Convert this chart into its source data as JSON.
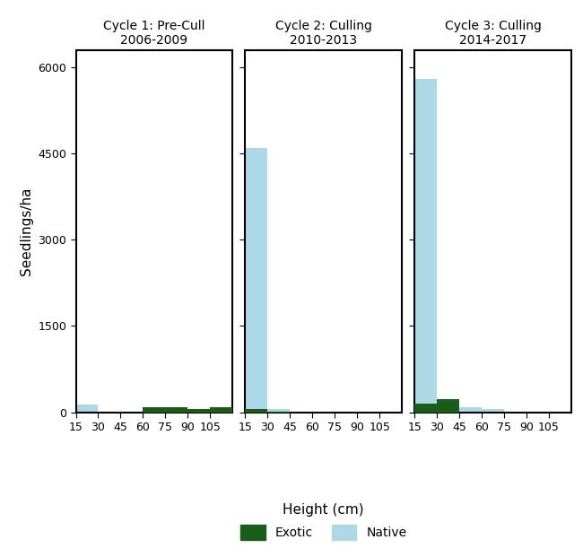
{
  "panels": [
    {
      "title": "Cycle 1: Pre-Cull\n2006-2009",
      "bins": [
        15,
        30,
        45,
        60,
        75,
        90,
        105
      ],
      "exotic": [
        0,
        0,
        0,
        90,
        90,
        55,
        85
      ],
      "native": [
        130,
        8,
        0,
        0,
        0,
        0,
        0
      ]
    },
    {
      "title": "Cycle 2: Culling\n2010-2013",
      "bins": [
        15,
        30,
        45,
        60,
        75,
        90,
        105
      ],
      "exotic": [
        55,
        5,
        0,
        0,
        0,
        0,
        0
      ],
      "native": [
        4600,
        50,
        0,
        0,
        0,
        0,
        0
      ]
    },
    {
      "title": "Cycle 3: Culling\n2014-2017",
      "bins": [
        15,
        30,
        45,
        60,
        75,
        90,
        105
      ],
      "exotic": [
        150,
        230,
        0,
        0,
        0,
        0,
        0
      ],
      "native": [
        5800,
        230,
        80,
        50,
        0,
        0,
        0
      ]
    }
  ],
  "ylim": [
    0,
    6300
  ],
  "yticks": [
    0,
    1500,
    3000,
    4500,
    6000
  ],
  "xtick_positions": [
    15,
    30,
    45,
    60,
    75,
    90,
    105
  ],
  "xtick_labels": [
    "15",
    "30",
    "45",
    "60",
    "75",
    "90",
    "105"
  ],
  "xlabel": "Height (cm)",
  "ylabel": "Seedlings/ha",
  "exotic_color": "#1a5c1a",
  "native_color": "#add8e6",
  "legend_exotic": "Exotic",
  "legend_native": "Native"
}
